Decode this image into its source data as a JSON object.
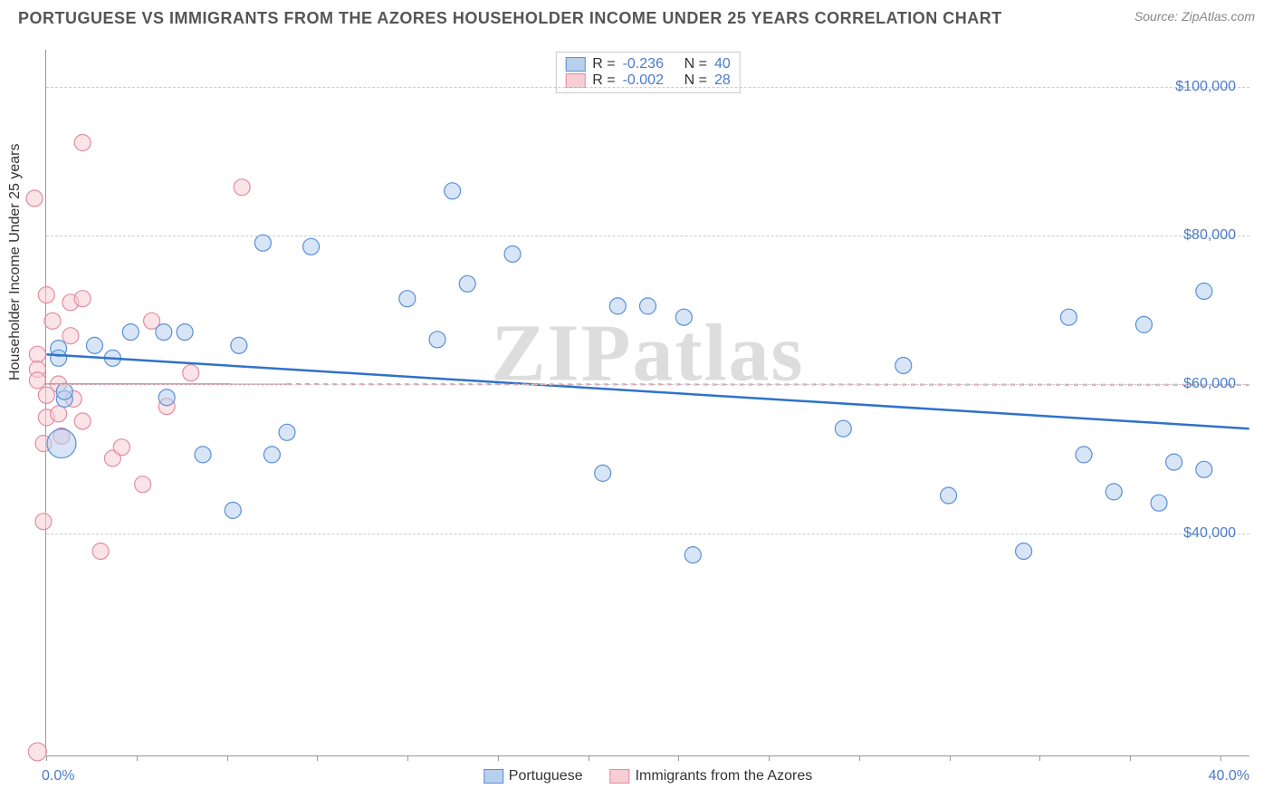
{
  "header": {
    "title": "PORTUGUESE VS IMMIGRANTS FROM THE AZORES HOUSEHOLDER INCOME UNDER 25 YEARS CORRELATION CHART",
    "source_prefix": "Source: ",
    "source": "ZipAtlas.com"
  },
  "watermark": "ZIPatlas",
  "axes": {
    "ylabel": "Householder Income Under 25 years",
    "x_min": 0.0,
    "x_max": 40.0,
    "x_min_label": "0.0%",
    "x_max_label": "40.0%",
    "y_min": 10000,
    "y_max": 105000,
    "y_ticks": [
      40000,
      60000,
      80000,
      100000
    ],
    "y_tick_labels": [
      "$40,000",
      "$60,000",
      "$80,000",
      "$100,000"
    ],
    "x_tick_positions": [
      0,
      3,
      6,
      9,
      12,
      15,
      18,
      21,
      24,
      27,
      30,
      33,
      36,
      39
    ],
    "grid_color": "#cccccc"
  },
  "legend_top": {
    "series": [
      {
        "swatch_fill": "#b8d0ee",
        "swatch_border": "#5a8fd6",
        "r_label": "R =",
        "r_value": "-0.236",
        "n_label": "N =",
        "n_value": "40"
      },
      {
        "swatch_fill": "#f7cdd6",
        "swatch_border": "#e28ca0",
        "r_label": "R =",
        "r_value": "-0.002",
        "n_label": "N =",
        "n_value": "28"
      }
    ],
    "label_color": "#333333",
    "value_color": "#4a7bc8"
  },
  "legend_bottom": {
    "items": [
      {
        "swatch_fill": "#b8d0ee",
        "swatch_border": "#5a8fd6",
        "label": "Portuguese"
      },
      {
        "swatch_fill": "#f7cdd6",
        "swatch_border": "#e28ca0",
        "label": "Immigrants from the Azores"
      }
    ]
  },
  "chart": {
    "type": "scatter",
    "marker_radius": 9,
    "marker_stroke_width": 1.2,
    "series_a": {
      "name": "Portuguese",
      "fill": "#b8d0ee",
      "stroke": "#5a8fd6",
      "fill_opacity": 0.55,
      "trend": {
        "y_at_xmin": 64000,
        "y_at_xmax": 54000,
        "stroke": "#2f72c9",
        "width": 2.5,
        "dash": ""
      },
      "points": [
        {
          "x": 0.4,
          "y": 64800,
          "r": 9
        },
        {
          "x": 0.4,
          "y": 63500,
          "r": 9
        },
        {
          "x": 0.5,
          "y": 52000,
          "r": 16
        },
        {
          "x": 0.6,
          "y": 58000,
          "r": 9
        },
        {
          "x": 0.6,
          "y": 59000,
          "r": 9
        },
        {
          "x": 1.6,
          "y": 65200,
          "r": 9
        },
        {
          "x": 2.2,
          "y": 63500,
          "r": 9
        },
        {
          "x": 2.8,
          "y": 67000,
          "r": 9
        },
        {
          "x": 3.9,
          "y": 67000,
          "r": 9
        },
        {
          "x": 4.0,
          "y": 58200,
          "r": 9
        },
        {
          "x": 4.6,
          "y": 67000,
          "r": 9
        },
        {
          "x": 5.2,
          "y": 50500,
          "r": 9
        },
        {
          "x": 6.2,
          "y": 43000,
          "r": 9
        },
        {
          "x": 6.4,
          "y": 65200,
          "r": 9
        },
        {
          "x": 7.2,
          "y": 79000,
          "r": 9
        },
        {
          "x": 7.5,
          "y": 50500,
          "r": 9
        },
        {
          "x": 8.0,
          "y": 53500,
          "r": 9
        },
        {
          "x": 8.8,
          "y": 78500,
          "r": 9
        },
        {
          "x": 12.0,
          "y": 71500,
          "r": 9
        },
        {
          "x": 13.0,
          "y": 66000,
          "r": 9
        },
        {
          "x": 13.5,
          "y": 86000,
          "r": 9
        },
        {
          "x": 14.0,
          "y": 73500,
          "r": 9
        },
        {
          "x": 15.5,
          "y": 77500,
          "r": 9
        },
        {
          "x": 18.5,
          "y": 48000,
          "r": 9
        },
        {
          "x": 19.0,
          "y": 70500,
          "r": 9
        },
        {
          "x": 20.0,
          "y": 70500,
          "r": 9
        },
        {
          "x": 21.2,
          "y": 69000,
          "r": 9
        },
        {
          "x": 21.5,
          "y": 37000,
          "r": 9
        },
        {
          "x": 26.5,
          "y": 54000,
          "r": 9
        },
        {
          "x": 28.5,
          "y": 62500,
          "r": 9
        },
        {
          "x": 30.0,
          "y": 45000,
          "r": 9
        },
        {
          "x": 32.5,
          "y": 37500,
          "r": 9
        },
        {
          "x": 34.0,
          "y": 69000,
          "r": 9
        },
        {
          "x": 34.5,
          "y": 50500,
          "r": 9
        },
        {
          "x": 35.5,
          "y": 45500,
          "r": 9
        },
        {
          "x": 36.5,
          "y": 68000,
          "r": 9
        },
        {
          "x": 37.0,
          "y": 44000,
          "r": 9
        },
        {
          "x": 37.5,
          "y": 49500,
          "r": 9
        },
        {
          "x": 38.5,
          "y": 72500,
          "r": 9
        },
        {
          "x": 38.5,
          "y": 48500,
          "r": 9
        }
      ]
    },
    "series_b": {
      "name": "Immigrants from the Azores",
      "fill": "#f7cdd6",
      "stroke": "#e28ca0",
      "fill_opacity": 0.55,
      "trend": {
        "y_at_xmin": 60000,
        "y_at_xmax": 59900,
        "stroke": "#e28ca0",
        "width": 2,
        "dash": "",
        "solid_until_x": 8.0,
        "dash_after": "5,5"
      },
      "points": [
        {
          "x": -0.4,
          "y": 85000,
          "r": 9
        },
        {
          "x": -0.3,
          "y": 64000,
          "r": 9
        },
        {
          "x": -0.3,
          "y": 62000,
          "r": 9
        },
        {
          "x": -0.3,
          "y": 60500,
          "r": 9
        },
        {
          "x": -0.3,
          "y": 10500,
          "r": 10
        },
        {
          "x": -0.1,
          "y": 52000,
          "r": 9
        },
        {
          "x": -0.1,
          "y": 41500,
          "r": 9
        },
        {
          "x": 0.0,
          "y": 72000,
          "r": 9
        },
        {
          "x": 0.0,
          "y": 58500,
          "r": 9
        },
        {
          "x": 0.0,
          "y": 55500,
          "r": 9
        },
        {
          "x": 0.2,
          "y": 68500,
          "r": 9
        },
        {
          "x": 0.4,
          "y": 60000,
          "r": 9
        },
        {
          "x": 0.4,
          "y": 56000,
          "r": 9
        },
        {
          "x": 0.5,
          "y": 53000,
          "r": 9
        },
        {
          "x": 0.8,
          "y": 71000,
          "r": 9
        },
        {
          "x": 0.8,
          "y": 66500,
          "r": 9
        },
        {
          "x": 0.9,
          "y": 58000,
          "r": 9
        },
        {
          "x": 1.2,
          "y": 92500,
          "r": 9
        },
        {
          "x": 1.2,
          "y": 71500,
          "r": 9
        },
        {
          "x": 1.2,
          "y": 55000,
          "r": 9
        },
        {
          "x": 1.8,
          "y": 37500,
          "r": 9
        },
        {
          "x": 2.2,
          "y": 50000,
          "r": 9
        },
        {
          "x": 2.5,
          "y": 51500,
          "r": 9
        },
        {
          "x": 3.2,
          "y": 46500,
          "r": 9
        },
        {
          "x": 3.5,
          "y": 68500,
          "r": 9
        },
        {
          "x": 4.0,
          "y": 57000,
          "r": 9
        },
        {
          "x": 6.5,
          "y": 86500,
          "r": 9
        },
        {
          "x": 4.8,
          "y": 61500,
          "r": 9
        }
      ]
    }
  }
}
